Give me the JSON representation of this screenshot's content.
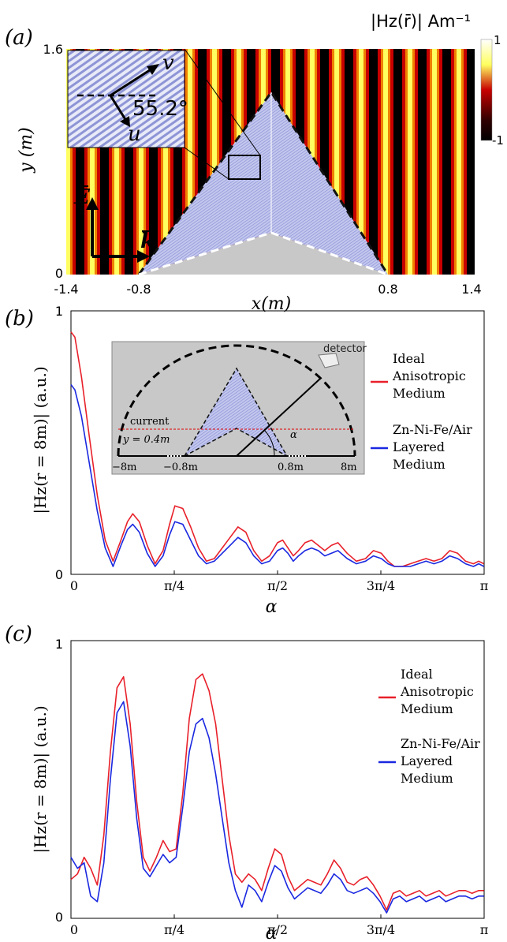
{
  "panel_a": {
    "label": "(a)",
    "colorbar_title": "|Hz(r̄)| Am⁻¹",
    "colorbar_ticks": [
      "1",
      "-1"
    ],
    "inset_angle": "55.2°",
    "inset_axes": [
      "v",
      "u"
    ],
    "field_labels": [
      "E",
      "k"
    ],
    "colors": {
      "background": "#000000",
      "mid": "#c80000",
      "peak": "#ffff60",
      "object": "#b4b8e6",
      "ground": "#c8c8c8"
    },
    "chart_data": {
      "type": "heatmap",
      "xlabel": "x(m)",
      "ylabel": "y (m)",
      "xlim": [
        -1.4,
        1.4
      ],
      "ylim": [
        0,
        1.6
      ],
      "x_ticks": [
        "-1.4",
        "-0.8",
        "0.8",
        "1.4"
      ],
      "y_ticks": [
        "1.6",
        "0"
      ],
      "colorbar_range": [
        -1,
        1
      ]
    }
  },
  "panel_b": {
    "label": "(b)",
    "inset": {
      "detector": "detector",
      "current": "current",
      "y_eq": "y = 0.4m",
      "alpha": "α",
      "ticks": [
        "−8m",
        "−0.8m",
        "0.8m",
        "8m"
      ]
    },
    "chart_data": {
      "type": "line",
      "xlabel": "α",
      "ylabel": "|Hz(r = 8m)| (a.u.)",
      "ylim": [
        0,
        1
      ],
      "xlim": [
        0,
        3.1416
      ],
      "x_ticks": [
        0,
        0.7854,
        1.5708,
        2.3562,
        3.1416
      ],
      "x_tick_labels": [
        "0",
        "π/4",
        "π/2",
        "3π/4",
        "π"
      ],
      "y_tick_labels": [
        "0",
        "1"
      ],
      "series": [
        {
          "name": "Ideal Anisotropic Medium",
          "color": "#e8202a",
          "x": [
            0,
            0.03,
            0.08,
            0.14,
            0.2,
            0.26,
            0.32,
            0.38,
            0.43,
            0.47,
            0.52,
            0.58,
            0.64,
            0.7,
            0.75,
            0.79,
            0.85,
            0.91,
            0.97,
            1.03,
            1.09,
            1.15,
            1.21,
            1.27,
            1.33,
            1.39,
            1.45,
            1.51,
            1.57,
            1.61,
            1.65,
            1.69,
            1.73,
            1.78,
            1.83,
            1.88,
            1.93,
            1.98,
            2.03,
            2.1,
            2.17,
            2.24,
            2.3,
            2.36,
            2.41,
            2.46,
            2.52,
            2.58,
            2.64,
            2.7,
            2.76,
            2.82,
            2.88,
            2.94,
            3.0,
            3.06,
            3.1,
            3.14
          ],
          "values": [
            0.92,
            0.9,
            0.75,
            0.52,
            0.3,
            0.13,
            0.05,
            0.13,
            0.2,
            0.23,
            0.2,
            0.11,
            0.04,
            0.09,
            0.19,
            0.26,
            0.25,
            0.18,
            0.1,
            0.05,
            0.06,
            0.1,
            0.14,
            0.18,
            0.16,
            0.09,
            0.05,
            0.07,
            0.12,
            0.13,
            0.1,
            0.07,
            0.09,
            0.12,
            0.13,
            0.11,
            0.09,
            0.11,
            0.12,
            0.08,
            0.05,
            0.06,
            0.09,
            0.08,
            0.05,
            0.03,
            0.03,
            0.04,
            0.05,
            0.06,
            0.05,
            0.06,
            0.09,
            0.08,
            0.05,
            0.04,
            0.05,
            0.04
          ]
        },
        {
          "name": "Zn-Ni-Fe/Air Layered Medium",
          "color": "#1a28e0",
          "x": [
            0,
            0.03,
            0.08,
            0.14,
            0.2,
            0.26,
            0.32,
            0.38,
            0.43,
            0.47,
            0.52,
            0.58,
            0.64,
            0.7,
            0.75,
            0.79,
            0.85,
            0.91,
            0.97,
            1.03,
            1.09,
            1.15,
            1.21,
            1.27,
            1.33,
            1.39,
            1.45,
            1.51,
            1.57,
            1.61,
            1.65,
            1.69,
            1.73,
            1.78,
            1.83,
            1.88,
            1.93,
            1.98,
            2.03,
            2.1,
            2.17,
            2.24,
            2.3,
            2.36,
            2.41,
            2.46,
            2.52,
            2.58,
            2.64,
            2.7,
            2.76,
            2.82,
            2.88,
            2.94,
            3.0,
            3.06,
            3.1,
            3.14
          ],
          "values": [
            0.72,
            0.7,
            0.6,
            0.42,
            0.24,
            0.1,
            0.03,
            0.11,
            0.17,
            0.19,
            0.16,
            0.08,
            0.03,
            0.07,
            0.15,
            0.2,
            0.19,
            0.13,
            0.07,
            0.04,
            0.05,
            0.08,
            0.11,
            0.14,
            0.12,
            0.07,
            0.04,
            0.05,
            0.09,
            0.1,
            0.08,
            0.05,
            0.07,
            0.09,
            0.1,
            0.09,
            0.07,
            0.08,
            0.09,
            0.06,
            0.04,
            0.05,
            0.07,
            0.06,
            0.04,
            0.03,
            0.03,
            0.03,
            0.04,
            0.05,
            0.04,
            0.05,
            0.07,
            0.06,
            0.04,
            0.03,
            0.04,
            0.03
          ]
        }
      ]
    }
  },
  "panel_c": {
    "label": "(c)",
    "chart_data": {
      "type": "line",
      "xlabel": "α",
      "ylabel": "|Hz(r = 8m)| (a.u.)",
      "ylim": [
        0,
        1
      ],
      "xlim": [
        0,
        3.1416
      ],
      "x_ticks": [
        0,
        0.7854,
        1.5708,
        2.3562,
        3.1416
      ],
      "x_tick_labels": [
        "0",
        "π/4",
        "π/2",
        "3π/4",
        "π"
      ],
      "y_tick_labels": [
        "0",
        "1"
      ],
      "series": [
        {
          "name": "Ideal Anisotropic Medium",
          "color": "#e8202a",
          "x": [
            0,
            0.05,
            0.1,
            0.15,
            0.2,
            0.25,
            0.3,
            0.35,
            0.4,
            0.45,
            0.5,
            0.55,
            0.6,
            0.65,
            0.7,
            0.75,
            0.8,
            0.85,
            0.9,
            0.95,
            1.0,
            1.05,
            1.1,
            1.15,
            1.2,
            1.25,
            1.3,
            1.35,
            1.4,
            1.45,
            1.5,
            1.55,
            1.6,
            1.65,
            1.7,
            1.75,
            1.8,
            1.85,
            1.9,
            1.95,
            2.0,
            2.05,
            2.1,
            2.15,
            2.2,
            2.25,
            2.3,
            2.35,
            2.4,
            2.45,
            2.5,
            2.55,
            2.6,
            2.65,
            2.7,
            2.75,
            2.8,
            2.85,
            2.9,
            2.95,
            3.0,
            3.05,
            3.1,
            3.14
          ],
          "values": [
            0.14,
            0.16,
            0.22,
            0.18,
            0.12,
            0.3,
            0.6,
            0.83,
            0.87,
            0.7,
            0.42,
            0.22,
            0.17,
            0.22,
            0.28,
            0.24,
            0.25,
            0.45,
            0.72,
            0.86,
            0.88,
            0.82,
            0.7,
            0.5,
            0.3,
            0.16,
            0.13,
            0.16,
            0.14,
            0.1,
            0.18,
            0.25,
            0.23,
            0.15,
            0.1,
            0.12,
            0.14,
            0.13,
            0.12,
            0.16,
            0.21,
            0.18,
            0.13,
            0.12,
            0.14,
            0.15,
            0.12,
            0.08,
            0.03,
            0.09,
            0.1,
            0.08,
            0.09,
            0.1,
            0.08,
            0.09,
            0.1,
            0.08,
            0.09,
            0.1,
            0.1,
            0.09,
            0.1,
            0.1
          ]
        },
        {
          "name": "Zn-Ni-Fe/Air Layered Medium",
          "color": "#1a28e0",
          "x": [
            0,
            0.05,
            0.1,
            0.15,
            0.2,
            0.25,
            0.3,
            0.35,
            0.4,
            0.45,
            0.5,
            0.55,
            0.6,
            0.65,
            0.7,
            0.75,
            0.8,
            0.85,
            0.9,
            0.95,
            1.0,
            1.05,
            1.1,
            1.15,
            1.2,
            1.25,
            1.3,
            1.35,
            1.4,
            1.45,
            1.5,
            1.55,
            1.6,
            1.65,
            1.7,
            1.75,
            1.8,
            1.85,
            1.9,
            1.95,
            2.0,
            2.05,
            2.1,
            2.15,
            2.2,
            2.25,
            2.3,
            2.35,
            2.4,
            2.45,
            2.5,
            2.55,
            2.6,
            2.65,
            2.7,
            2.75,
            2.8,
            2.85,
            2.9,
            2.95,
            3.0,
            3.05,
            3.1,
            3.14
          ],
          "values": [
            0.22,
            0.18,
            0.2,
            0.08,
            0.06,
            0.2,
            0.5,
            0.74,
            0.78,
            0.62,
            0.36,
            0.18,
            0.15,
            0.19,
            0.23,
            0.2,
            0.22,
            0.4,
            0.6,
            0.7,
            0.72,
            0.65,
            0.52,
            0.36,
            0.2,
            0.1,
            0.04,
            0.12,
            0.1,
            0.06,
            0.13,
            0.19,
            0.17,
            0.11,
            0.07,
            0.09,
            0.11,
            0.1,
            0.09,
            0.12,
            0.16,
            0.14,
            0.1,
            0.09,
            0.1,
            0.11,
            0.09,
            0.06,
            0.02,
            0.07,
            0.08,
            0.06,
            0.07,
            0.08,
            0.06,
            0.07,
            0.08,
            0.06,
            0.07,
            0.08,
            0.08,
            0.07,
            0.08,
            0.08
          ]
        }
      ]
    }
  }
}
